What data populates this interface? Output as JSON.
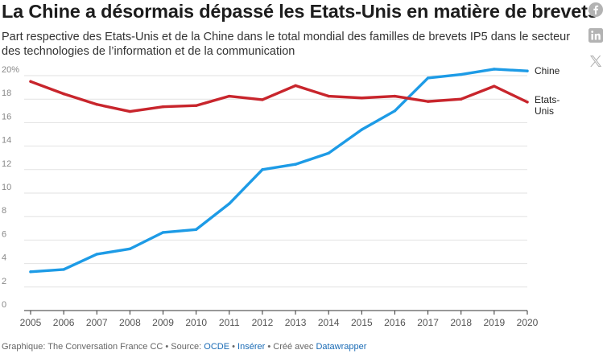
{
  "header": {
    "title": "La Chine a désormais dépassé les Etats-Unis en matière de brevets",
    "subtitle": "Part respective des Etats-Unis et de la Chine dans le total mondial des familles de brevets IP5 dans le secteur des technologies de l’information et de la communication"
  },
  "share": {
    "icons": [
      "facebook-icon",
      "linkedin-icon",
      "x-icon"
    ]
  },
  "chart_data": {
    "type": "line",
    "title": "La Chine a désormais dépassé les Etats-Unis en matière de brevets",
    "xlabel": "",
    "ylabel": "",
    "x": [
      2005,
      2006,
      2007,
      2008,
      2009,
      2010,
      2011,
      2012,
      2013,
      2014,
      2015,
      2016,
      2017,
      2018,
      2019,
      2020
    ],
    "ylim": [
      0,
      20
    ],
    "yticks": [
      0,
      2,
      4,
      6,
      8,
      10,
      12,
      14,
      16,
      18,
      20
    ],
    "ytick_labels": [
      "0",
      "2",
      "4",
      "6",
      "8",
      "10",
      "12",
      "14",
      "16",
      "18",
      "20%"
    ],
    "series": [
      {
        "name": "Chine",
        "color": "#1d9be6",
        "values": [
          3.3,
          3.5,
          4.8,
          5.25,
          6.65,
          6.9,
          9.1,
          12.0,
          12.45,
          13.4,
          15.4,
          17.0,
          19.8,
          20.1,
          20.55,
          20.4
        ]
      },
      {
        "name": "Etats-Unis",
        "label_lines": [
          "Etats-",
          "Unis"
        ],
        "color": "#c8252c",
        "values": [
          19.5,
          18.45,
          17.55,
          16.95,
          17.35,
          17.45,
          18.25,
          17.95,
          19.15,
          18.25,
          18.1,
          18.25,
          17.8,
          18.0,
          19.1,
          17.75
        ]
      }
    ],
    "legend": "inline-right",
    "grid": true
  },
  "footer": {
    "prefix": "Graphique: The Conversation France CC • Source: ",
    "source": "OCDE",
    "separator1": " • ",
    "embed": "Insérer",
    "separator2": " • Créé avec ",
    "tool": "Datawrapper"
  }
}
